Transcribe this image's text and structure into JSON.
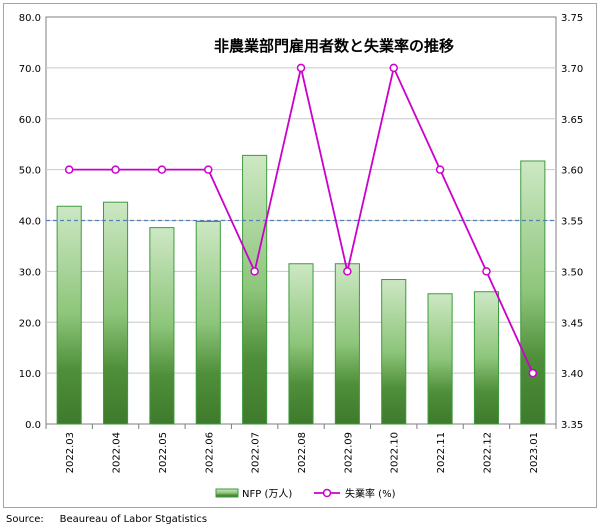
{
  "chart_data": {
    "type": "bar",
    "title": "非農業部門雇用者数と失業率の推移",
    "categories": [
      "2022.03",
      "2022.04",
      "2022.05",
      "2022.06",
      "2022.07",
      "2022.08",
      "2022.09",
      "2022.10",
      "2022.11",
      "2022.12",
      "2023.01"
    ],
    "series": [
      {
        "name": "NFP (万人)",
        "type": "bar",
        "axis": "left",
        "values": [
          42.8,
          43.6,
          38.6,
          39.8,
          52.8,
          31.5,
          31.5,
          28.4,
          25.6,
          26.0,
          51.7
        ],
        "color": "#4f8f3a"
      },
      {
        "name": "失業率 (%)",
        "type": "line",
        "axis": "right",
        "values": [
          3.6,
          3.6,
          3.6,
          3.6,
          3.5,
          3.7,
          3.5,
          3.7,
          3.6,
          3.5,
          3.4
        ],
        "color": "#cc00cc"
      }
    ],
    "left_axis": {
      "ylim": [
        0,
        80
      ],
      "ticks": [
        "0.0",
        "10.0",
        "20.0",
        "30.0",
        "40.0",
        "50.0",
        "60.0",
        "70.0",
        "80.0"
      ]
    },
    "right_axis": {
      "ylim": [
        3.35,
        3.75
      ],
      "ticks": [
        "3.35",
        "3.40",
        "3.45",
        "3.50",
        "3.55",
        "3.60",
        "3.65",
        "3.70",
        "3.75"
      ]
    },
    "reference_line": {
      "axis": "left",
      "value": 40,
      "style": "dashed",
      "color": "#4f81bd"
    },
    "grid": true,
    "legend_position": "bottom-center"
  },
  "source_label": "Source:",
  "source_text": "Beaureau of Labor Stgatistics"
}
